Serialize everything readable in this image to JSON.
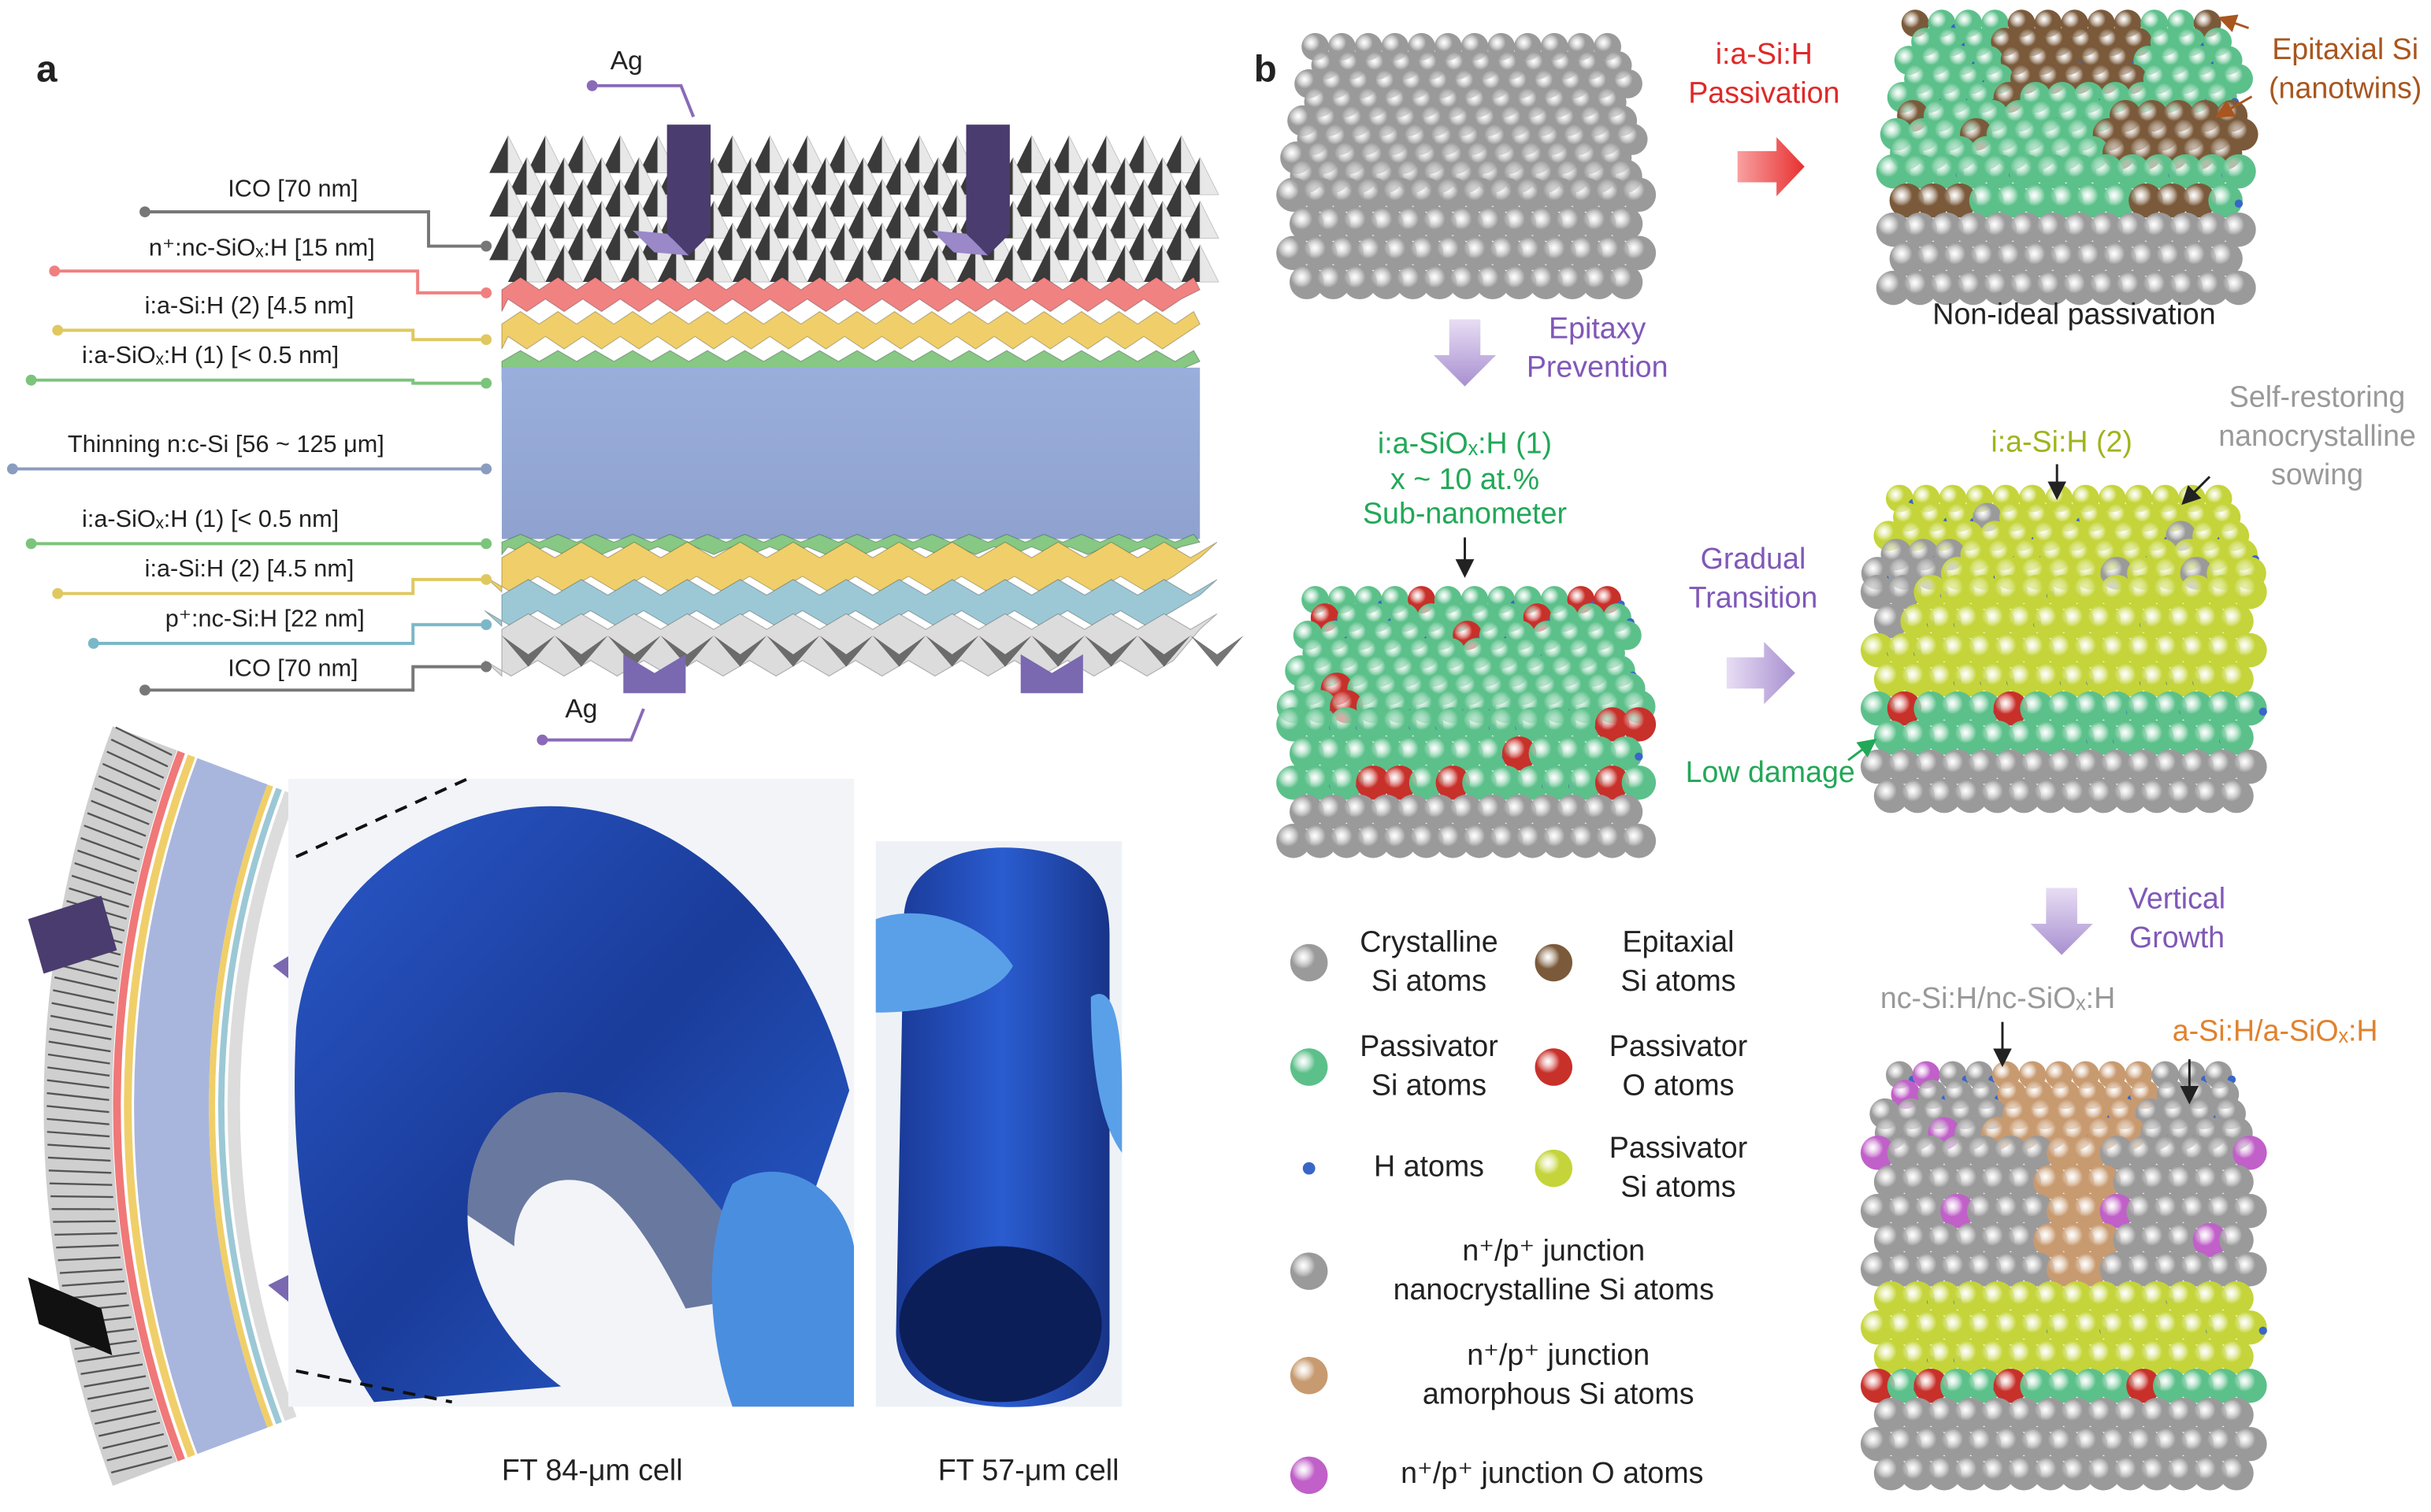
{
  "panel_a": {
    "label": "a",
    "ag_top": "Ag",
    "ag_bottom": "Ag",
    "layers": [
      "ICO [70 nm]",
      "n⁺:nc-SiOₓ:H [15 nm]",
      "i:a-Si:H (2) [4.5 nm]",
      "i:a-SiOₓ:H (1) [< 0.5 nm]",
      "Thinning n:c-Si [56 ~ 125 μm]",
      "i:a-SiOₓ:H (1) [< 0.5 nm]",
      "i:a-Si:H (2) [4.5 nm]",
      "p⁺:nc-Si:H [22 nm]",
      "ICO [70 nm]"
    ],
    "captions": [
      "FT 84-μm cell",
      "FT 57-μm cell"
    ]
  },
  "panel_b": {
    "label": "b",
    "passivation": [
      "i:a-Si:H",
      "Passivation"
    ],
    "epitaxial": [
      "Epitaxial Si",
      "(nanotwins)"
    ],
    "non_ideal": "Non-ideal passivation",
    "epitaxy_prevention": [
      "Epitaxy",
      "Prevention"
    ],
    "siox_layer": [
      "i:a-SiOₓ:H (1)",
      "x ~ 10 at.%",
      "Sub-nanometer"
    ],
    "gradual_transition": [
      "Gradual",
      "Transition"
    ],
    "si_layer": "i:a-Si:H (2)",
    "self_restoring": [
      "Self-restoring",
      "nanocrystalline",
      "sowing"
    ],
    "low_damage": "Low damage",
    "vertical_growth": [
      "Vertical",
      "Growth"
    ],
    "nc_label": "nc-Si:H/nc-SiOₓ:H",
    "a_label": "a-Si:H/a-SiOₓ:H"
  },
  "legend": {
    "items": [
      {
        "lines": [
          "Crystalline",
          "Si atoms"
        ],
        "color": "#9a9a9a"
      },
      {
        "lines": [
          "Epitaxial",
          "Si atoms"
        ],
        "color": "#7a5a3a"
      },
      {
        "lines": [
          "Passivator",
          "Si atoms"
        ],
        "color": "#5cc08a"
      },
      {
        "lines": [
          "Passivator",
          "O atoms"
        ],
        "color": "#c8302a"
      },
      {
        "lines": [
          "H atoms"
        ],
        "color": "#3a66c8"
      },
      {
        "lines": [
          "Passivator",
          "Si atoms"
        ],
        "color": "#c4d43a"
      },
      {
        "lines": [
          "n⁺/p⁺ junction",
          "nanocrystalline Si atoms"
        ],
        "color": "#9a9a9a"
      },
      {
        "lines": [
          "n⁺/p⁺ junction",
          "amorphous Si atoms"
        ],
        "color": "#c89a70"
      },
      {
        "lines": [
          "n⁺/p⁺ junction O atoms"
        ],
        "color": "#c060c8"
      }
    ]
  }
}
